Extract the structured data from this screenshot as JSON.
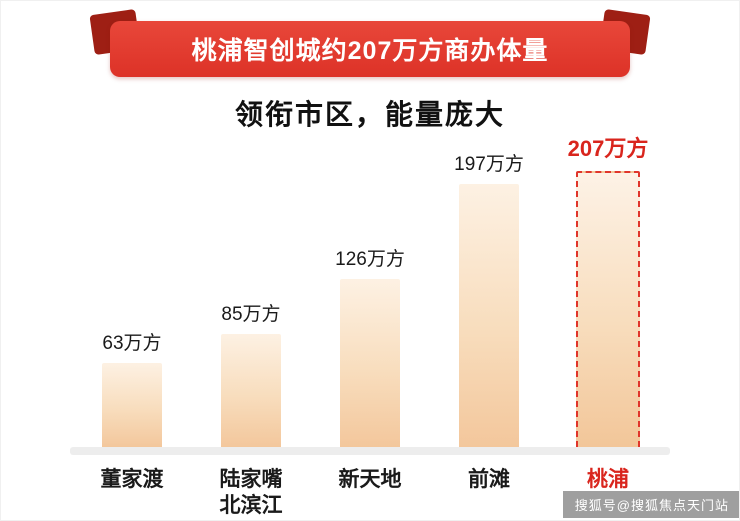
{
  "banner": {
    "title": "桃浦智创城约207万方商办体量",
    "ribbon_color": "#dd3227",
    "fold_color": "#9e1f14"
  },
  "subtitle": "领衔市区，能量庞大",
  "chart_data": {
    "type": "bar",
    "title": "桃浦智创城约207万方商办体量",
    "subtitle": "领衔市区，能量庞大",
    "categories": [
      "董家渡",
      "陆家嘴\n北滨江",
      "新天地",
      "前滩",
      "桃浦"
    ],
    "values": [
      63,
      85,
      126,
      197,
      207
    ],
    "value_labels": [
      "63万方",
      "85万方",
      "126万方",
      "197万方",
      "207万方"
    ],
    "unit": "万方",
    "highlight_index": 4,
    "highlight_category": "桃浦",
    "ylim": [
      0,
      210
    ],
    "grid": false,
    "legend": false,
    "bar_gradient_top": "#fdf1e3",
    "bar_gradient_bottom": "#f3c79c",
    "highlight_border_color": "#e0352b",
    "value_label_color": "#1a1a1a",
    "highlight_value_color": "#d9251d"
  },
  "watermark": {
    "text": "搜狐号@搜狐焦点天门站"
  }
}
